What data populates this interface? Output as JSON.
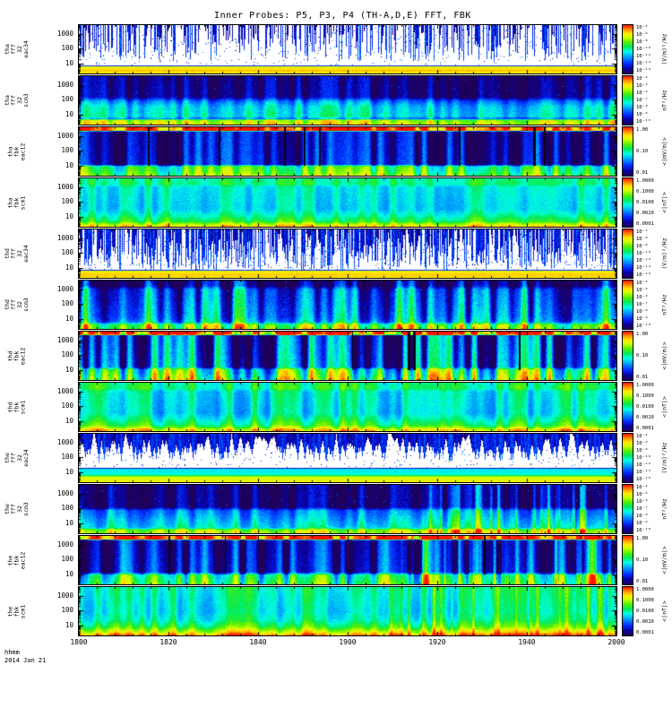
{
  "title": "Inner Probes: P5, P3, P4 (TH-A,D,E) FFT, FBK",
  "footer": {
    "code": "hhmm",
    "date": "2014 Jan 21"
  },
  "chart_data": {
    "type": "heatmap",
    "title": "Inner Probes: P5, P3, P4 (TH-A,D,E) FFT, FBK",
    "x_axis": {
      "label": "hhmm",
      "date": "2014 Jan 21",
      "ticks": [
        "1800",
        "1820",
        "1840",
        "1900",
        "1920",
        "1940",
        "2000"
      ]
    },
    "y_axis": {
      "scale": "log",
      "units": "Hz",
      "ticks": [
        "1000",
        "100",
        "10"
      ]
    },
    "panels": [
      {
        "id": "tha-fff-32-eac34",
        "label_lines": [
          "tha",
          "fff",
          "32",
          "eac34"
        ],
        "y_ticks": [
          "1000",
          "100",
          "10"
        ],
        "colorbar": {
          "unit": "(V/m)²/Hz",
          "ticks": [
            "10⁻⁴",
            "10⁻⁶",
            "10⁻⁸",
            "10⁻¹⁰",
            "10⁻¹²",
            "10⁻¹⁴",
            "10⁻¹⁶"
          ]
        },
        "render": {
          "seed": 11,
          "whiteBelow": 0.01,
          "pixAmp": 0.05,
          "speckle": 0.02,
          "spikes": {
            "density": 0.5,
            "depth": 0.75
          },
          "profile": [
            [
              0,
              -0.25
            ],
            [
              0.82,
              -0.25
            ],
            [
              0.85,
              0.78
            ],
            [
              0.93,
              0.85
            ],
            [
              1,
              0.8
            ]
          ]
        }
      },
      {
        "id": "tha-fff-32-scm3",
        "label_lines": [
          "tha",
          "fff",
          "32",
          "scm3"
        ],
        "y_ticks": [
          "1000",
          "100",
          "10"
        ],
        "colorbar": {
          "unit": "nT²/Hz",
          "ticks": [
            "10⁻⁴",
            "10⁻⁵",
            "10⁻⁶",
            "10⁻⁷",
            "10⁻⁸",
            "10⁻⁹",
            "10⁻¹⁰"
          ]
        },
        "render": {
          "seed": 12,
          "whiteBelow": null,
          "colAmp": 0.13,
          "pixAmp": 0.1,
          "speckle": 0.006,
          "profile": [
            [
              0,
              0.06
            ],
            [
              0.42,
              0.08
            ],
            [
              0.5,
              0.28
            ],
            [
              0.62,
              0.4
            ],
            [
              0.82,
              0.44
            ],
            [
              0.87,
              0.3
            ],
            [
              0.9,
              0.72
            ],
            [
              1,
              0.78
            ]
          ]
        }
      },
      {
        "id": "tha-fbk-eac12",
        "label_lines": [
          "tha",
          "fbk",
          "eac12"
        ],
        "y_ticks": [
          "1000",
          "100",
          "10"
        ],
        "colorbar": {
          "unit": "<|mV/m|>",
          "ticks": [
            "1.00",
            "0.10",
            "0.01"
          ]
        },
        "render": {
          "seed": 13,
          "whiteBelow": null,
          "colAmp": 0.22,
          "pixAmp": 0.1,
          "darkCols": 0.015,
          "profile": [
            [
              0,
              0.97
            ],
            [
              0.06,
              0.97
            ],
            [
              0.08,
              0.1
            ],
            [
              0.76,
              0.13
            ],
            [
              0.8,
              0.55
            ],
            [
              0.93,
              0.6
            ],
            [
              1,
              0.68
            ]
          ]
        }
      },
      {
        "id": "tha-fbk-scm1",
        "label_lines": [
          "tha",
          "fbk",
          "scm1"
        ],
        "y_ticks": [
          "1000",
          "100",
          "10"
        ],
        "colorbar": {
          "unit": "<|nT|>",
          "ticks": [
            "1.0000",
            "0.1000",
            "0.0100",
            "0.0010",
            "0.0001"
          ]
        },
        "render": {
          "seed": 14,
          "whiteBelow": null,
          "colAmp": 0.1,
          "pixAmp": 0.08,
          "profile": [
            [
              0,
              0.52
            ],
            [
              0.1,
              0.55
            ],
            [
              0.18,
              0.45
            ],
            [
              0.62,
              0.42
            ],
            [
              0.75,
              0.5
            ],
            [
              0.88,
              0.6
            ],
            [
              0.94,
              0.75
            ],
            [
              1,
              0.88
            ]
          ]
        }
      },
      {
        "id": "thd-fff-32-eac34",
        "label_lines": [
          "thd",
          "fff",
          "32",
          "eac34"
        ],
        "y_ticks": [
          "1000",
          "100",
          "10"
        ],
        "colorbar": {
          "unit": "(V/m)²/Hz",
          "ticks": [
            "10⁻⁴",
            "10⁻⁶",
            "10⁻⁸",
            "10⁻¹⁰",
            "10⁻¹²",
            "10⁻¹⁴",
            "10⁻¹⁶"
          ]
        },
        "render": {
          "seed": 15,
          "whiteBelow": 0.01,
          "pixAmp": 0.05,
          "speckle": 0.03,
          "spikes": {
            "density": 0.75,
            "depth": 0.85
          },
          "profile": [
            [
              0,
              -0.25
            ],
            [
              0.82,
              -0.25
            ],
            [
              0.85,
              0.78
            ],
            [
              0.93,
              0.85
            ],
            [
              1,
              0.8
            ]
          ]
        }
      },
      {
        "id": "thd-fff-32-scm3",
        "label_lines": [
          "thd",
          "fff",
          "32",
          "scm3"
        ],
        "y_ticks": [
          "1000",
          "100",
          "10"
        ],
        "colorbar": {
          "unit": "nT²/Hz",
          "ticks": [
            "10⁻⁴",
            "10⁻⁵",
            "10⁻⁶",
            "10⁻⁷",
            "10⁻⁸",
            "10⁻⁹",
            "10⁻¹⁰"
          ]
        },
        "render": {
          "seed": 16,
          "whiteBelow": null,
          "colAmp": 0.3,
          "pixAmp": 0.12,
          "speckle": 0.008,
          "profile": [
            [
              0,
              0.06
            ],
            [
              0.1,
              0.1
            ],
            [
              0.18,
              0.28
            ],
            [
              0.75,
              0.36
            ],
            [
              0.85,
              0.42
            ],
            [
              0.9,
              0.7
            ],
            [
              1,
              0.75
            ]
          ]
        }
      },
      {
        "id": "thd-fbk-eac12",
        "label_lines": [
          "thd",
          "fbk",
          "eac12"
        ],
        "y_ticks": [
          "1000",
          "100",
          "10"
        ],
        "colorbar": {
          "unit": "<|mV/m|>",
          "ticks": [
            "1.00",
            "0.10",
            "0.01"
          ]
        },
        "render": {
          "seed": 17,
          "whiteBelow": null,
          "colAmp": 0.4,
          "pixAmp": 0.12,
          "darkCols": 0.008,
          "profile": [
            [
              0,
              0.97
            ],
            [
              0.05,
              0.97
            ],
            [
              0.07,
              0.16
            ],
            [
              0.72,
              0.22
            ],
            [
              0.78,
              0.5
            ],
            [
              0.95,
              0.58
            ],
            [
              1,
              0.62
            ]
          ]
        }
      },
      {
        "id": "thd-fbk-scm1",
        "label_lines": [
          "thd",
          "fbk",
          "scm1"
        ],
        "y_ticks": [
          "1000",
          "100",
          "10"
        ],
        "colorbar": {
          "unit": "<|nT|>",
          "ticks": [
            "1.0000",
            "0.1000",
            "0.0100",
            "0.0010",
            "0.0001"
          ]
        },
        "render": {
          "seed": 18,
          "whiteBelow": null,
          "colAmp": 0.14,
          "pixAmp": 0.08,
          "profile": [
            [
              0,
              0.52
            ],
            [
              0.1,
              0.55
            ],
            [
              0.18,
              0.45
            ],
            [
              0.62,
              0.42
            ],
            [
              0.75,
              0.5
            ],
            [
              0.88,
              0.6
            ],
            [
              0.94,
              0.75
            ],
            [
              1,
              0.88
            ]
          ]
        }
      },
      {
        "id": "the-fff-32-eac34",
        "label_lines": [
          "the",
          "fff",
          "32",
          "eac34"
        ],
        "y_ticks": [
          "1000",
          "100",
          "10"
        ],
        "colorbar": {
          "unit": "(V/m)²/Hz",
          "ticks": [
            "10⁻⁴",
            "10⁻⁶",
            "10⁻⁸",
            "10⁻¹⁰",
            "10⁻¹²",
            "10⁻¹⁴",
            "10⁻¹⁶"
          ]
        },
        "render": {
          "seed": 19,
          "whiteBelow": 0.01,
          "pixAmp": 0.05,
          "speckle": 0.02,
          "spikes": {
            "density": 0.45,
            "depth": 0.55,
            "smooth": 3
          },
          "profile": [
            [
              0,
              -0.25
            ],
            [
              0.68,
              -0.25
            ],
            [
              0.72,
              0.42
            ],
            [
              0.84,
              0.46
            ],
            [
              0.88,
              0.75
            ],
            [
              1,
              0.8
            ]
          ]
        }
      },
      {
        "id": "the-fff-32-scm3",
        "label_lines": [
          "the",
          "fff",
          "32",
          "scm3"
        ],
        "y_ticks": [
          "1000",
          "100",
          "10"
        ],
        "colorbar": {
          "unit": "nT²/Hz",
          "ticks": [
            "10⁻⁴",
            "10⁻⁵",
            "10⁻⁶",
            "10⁻⁷",
            "10⁻⁸",
            "10⁻⁹",
            "10⁻¹⁰"
          ]
        },
        "render": {
          "seed": 20,
          "whiteBelow": null,
          "colAmp": 0.14,
          "pixAmp": 0.1,
          "speckle": 0.01,
          "rightBoost": {
            "x0": 0.6,
            "amp": 0.35
          },
          "profile": [
            [
              0,
              0.06
            ],
            [
              0.45,
              0.07
            ],
            [
              0.52,
              0.3
            ],
            [
              0.8,
              0.42
            ],
            [
              0.88,
              0.45
            ],
            [
              0.92,
              0.72
            ],
            [
              1,
              0.75
            ]
          ]
        }
      },
      {
        "id": "the-fbk-eac12",
        "label_lines": [
          "the",
          "fbk",
          "eac12"
        ],
        "y_ticks": [
          "1000",
          "100",
          "10"
        ],
        "colorbar": {
          "unit": "<|mV/m|>",
          "ticks": [
            "1.00",
            "0.10",
            "0.01"
          ]
        },
        "render": {
          "seed": 21,
          "whiteBelow": null,
          "colAmp": 0.28,
          "pixAmp": 0.1,
          "darkCols": 0.01,
          "rightBoost": {
            "x0": 0.55,
            "amp": 0.4
          },
          "profile": [
            [
              0,
              0.97
            ],
            [
              0.06,
              0.97
            ],
            [
              0.08,
              0.1
            ],
            [
              0.74,
              0.14
            ],
            [
              0.8,
              0.5
            ],
            [
              1,
              0.58
            ]
          ]
        }
      },
      {
        "id": "the-fbk-scm1",
        "label_lines": [
          "the",
          "fbk",
          "scm1"
        ],
        "y_ticks": [
          "1000",
          "100",
          "10"
        ],
        "colorbar": {
          "unit": "<|nT|>",
          "ticks": [
            "1.0000",
            "0.1000",
            "0.0100",
            "0.0010",
            "0.0001"
          ]
        },
        "render": {
          "seed": 22,
          "whiteBelow": null,
          "colAmp": 0.12,
          "pixAmp": 0.08,
          "rightBoost": {
            "x0": 0.55,
            "amp": 0.3
          },
          "profile": [
            [
              0,
              0.5
            ],
            [
              0.5,
              0.45
            ],
            [
              0.68,
              0.5
            ],
            [
              0.82,
              0.62
            ],
            [
              0.92,
              0.78
            ],
            [
              1,
              0.95
            ]
          ]
        }
      }
    ]
  }
}
